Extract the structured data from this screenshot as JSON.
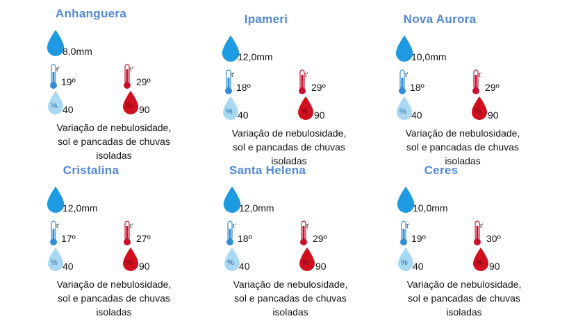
{
  "colors": {
    "title": "#4f86d8",
    "rain_drop": "#1e9be0",
    "thermo_min": "#2f8fd6",
    "thermo_max": "#c8102e",
    "humidity_min": "#a9d8f2",
    "humidity_max": "#d0101e"
  },
  "icons": {
    "rain": "rain-drop-icon",
    "temp_min": "thermometer-cold-icon",
    "temp_max": "thermometer-hot-icon",
    "hum_min": "humidity-low-icon",
    "hum_max": "humidity-high-icon"
  },
  "thermo_label": "t'",
  "hum_symbol": "%",
  "cities": [
    {
      "name": "Anhanguera",
      "rain": "8,0mm",
      "temp_min": "19º",
      "temp_max": "29º",
      "hum_min": "40",
      "hum_max": "90",
      "desc": [
        "Variação de nebulosidade,",
        "sol e pancadas de chuvas",
        "isoladas"
      ]
    },
    {
      "name": "Ipameri",
      "rain": "12,0mm",
      "temp_min": "18º",
      "temp_max": "29º",
      "hum_min": "40",
      "hum_max": "90",
      "desc": [
        "Variação de nebulosidade,",
        "sol e pancadas de chuvas",
        "isoladas"
      ]
    },
    {
      "name": "Nova Aurora",
      "rain": "10,0mm",
      "temp_min": "18º",
      "temp_max": "29º",
      "hum_min": "40",
      "hum_max": "90",
      "desc": [
        "Variação de nebulosidade,",
        "sol e pancadas de chuvas",
        "isoladas"
      ]
    },
    {
      "name": "Cristalina",
      "rain": "12,0mm",
      "temp_min": "17º",
      "temp_max": "27º",
      "hum_min": "40",
      "hum_max": "90",
      "desc": [
        "Variação de nebulosidade,",
        "sol e pancadas de chuvas",
        "isoladas"
      ]
    },
    {
      "name": "Santa Helena",
      "rain": "12,0mm",
      "temp_min": "18º",
      "temp_max": "29º",
      "hum_min": "40",
      "hum_max": "90",
      "desc": [
        "Variação de nebulosidade,",
        "sol e pancadas de chuvas",
        "isoladas"
      ]
    },
    {
      "name": "Ceres",
      "rain": "10,0mm",
      "temp_min": "19º",
      "temp_max": "30º",
      "hum_min": "40",
      "hum_max": "90",
      "desc": [
        "Variação de nebulosidade,",
        "sol e pancadas de chuvas",
        "isoladas"
      ]
    }
  ]
}
